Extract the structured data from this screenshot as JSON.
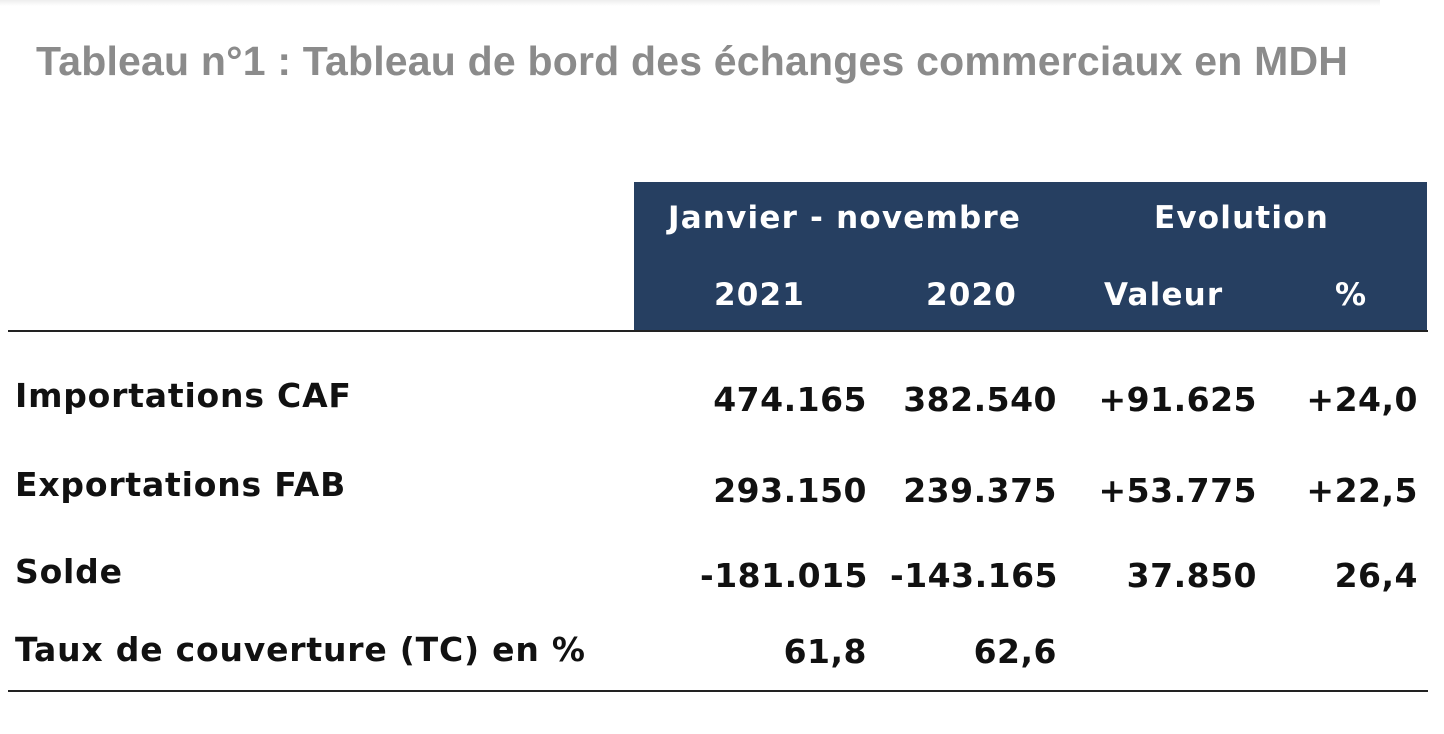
{
  "title": "Tableau n°1 : Tableau de bord des échanges commerciaux en MDH",
  "table": {
    "header": {
      "group_period": "Janvier - novembre",
      "group_evolution": "Evolution",
      "col_2021": "2021",
      "col_2020": "2020",
      "col_valeur": "Valeur",
      "col_pct": "%"
    },
    "rows": [
      {
        "label": "Importations CAF",
        "v2021": "474.165",
        "v2020": "382.540",
        "valeur": "+91.625",
        "pct": "+24,0"
      },
      {
        "label": "Exportations FAB",
        "v2021": "293.150",
        "v2020": "239.375",
        "valeur": "+53.775",
        "pct": "+22,5"
      },
      {
        "label": "Solde",
        "v2021": "-181.015",
        "v2020": "-143.165",
        "valeur": "37.850",
        "pct": "26,4"
      },
      {
        "label": "Taux de couverture (TC) en %",
        "v2021": "61,8",
        "v2020": "62,6",
        "valeur": "",
        "pct": ""
      }
    ]
  },
  "colors": {
    "header_bg": "#263f61",
    "header_text": "#ffffff",
    "title_text": "#8b8b8b",
    "body_text": "#111111"
  }
}
